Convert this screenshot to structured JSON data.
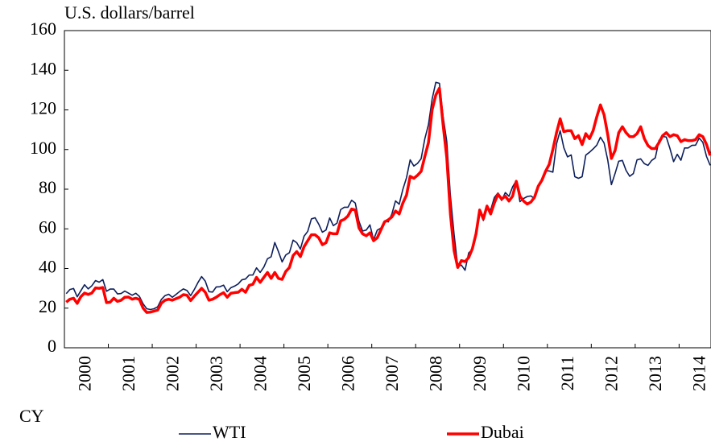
{
  "chart_data": {
    "type": "line",
    "y_axis_label": "U.S. dollars/barrel",
    "x_axis_label": "CY",
    "categories": [
      null,
      null,
      null,
      null,
      null,
      null,
      "2000",
      null,
      null,
      null,
      null,
      null,
      null,
      null,
      null,
      null,
      null,
      null,
      "2001",
      null,
      null,
      null,
      null,
      null,
      null,
      null,
      null,
      null,
      null,
      null,
      "2002",
      null,
      null,
      null,
      null,
      null,
      null,
      null,
      null,
      null,
      null,
      null,
      "2003",
      null,
      null,
      null,
      null,
      null,
      null,
      null,
      null,
      null,
      null,
      null,
      "2004",
      null,
      null,
      null,
      null,
      null,
      null,
      null,
      null,
      null,
      null,
      null,
      "2005",
      null,
      null,
      null,
      null,
      null,
      null,
      null,
      null,
      null,
      null,
      null,
      "2006",
      null,
      null,
      null,
      null,
      null,
      null,
      null,
      null,
      null,
      null,
      null,
      "2007",
      null,
      null,
      null,
      null,
      null,
      null,
      null,
      null,
      null,
      null,
      null,
      "2008",
      null,
      null,
      null,
      null,
      null,
      null,
      null,
      null,
      null,
      null,
      null,
      "2009",
      null,
      null,
      null,
      null,
      null,
      null,
      null,
      null,
      null,
      null,
      null,
      "2010",
      null,
      null,
      null,
      null,
      null,
      null,
      null,
      null,
      null,
      null,
      null,
      "2011",
      null,
      null,
      null,
      null,
      null,
      null,
      null,
      null,
      null,
      null,
      null,
      "2012",
      null,
      null,
      null,
      null,
      null,
      null,
      null,
      null,
      null,
      null,
      null,
      "2013",
      null,
      null,
      null,
      null,
      null,
      null,
      null,
      null,
      null,
      null,
      null,
      "2014",
      null,
      null
    ],
    "series": [
      {
        "name": "WTI",
        "color": "#0d1f5c",
        "values": [
          27.3,
          29.4,
          29.9,
          25.7,
          28.8,
          31.8,
          29.7,
          31.3,
          33.9,
          33.1,
          34.4,
          28.5,
          29.6,
          29.6,
          27.2,
          27.4,
          28.6,
          27.6,
          26.5,
          27.5,
          25.9,
          22.2,
          19.7,
          19.3,
          19.7,
          20.7,
          24.4,
          26.3,
          27.0,
          25.5,
          26.9,
          28.4,
          29.7,
          28.9,
          26.3,
          29.4,
          32.9,
          35.9,
          33.6,
          28.3,
          28.1,
          30.7,
          30.8,
          31.6,
          28.3,
          30.3,
          31.1,
          32.2,
          34.3,
          34.7,
          36.7,
          36.7,
          40.3,
          38.0,
          40.7,
          44.9,
          45.9,
          53.1,
          48.5,
          43.3,
          46.8,
          48.0,
          54.3,
          53.0,
          49.8,
          56.3,
          58.7,
          65.0,
          65.6,
          62.4,
          58.3,
          59.4,
          65.5,
          61.6,
          62.9,
          69.7,
          70.9,
          70.9,
          74.4,
          73.0,
          63.8,
          58.9,
          59.4,
          62.0,
          54.5,
          59.3,
          60.4,
          64.0,
          63.5,
          67.5,
          74.1,
          72.4,
          79.9,
          85.8,
          94.8,
          91.7,
          93.0,
          95.4,
          105.4,
          112.6,
          125.4,
          133.9,
          133.4,
          116.7,
          104.1,
          76.6,
          57.3,
          41.1,
          41.7,
          39.1,
          47.9,
          49.6,
          59.0,
          69.6,
          64.2,
          71.1,
          69.5,
          75.8,
          78.1,
          74.3,
          78.3,
          76.4,
          81.2,
          84.3,
          73.7,
          75.3,
          76.3,
          76.6,
          75.2,
          81.9,
          84.3,
          89.2,
          89.2,
          88.6,
          102.9,
          109.5,
          100.9,
          96.3,
          97.3,
          86.3,
          85.5,
          86.3,
          97.2,
          98.6,
          100.3,
          102.2,
          106.2,
          103.3,
          94.7,
          82.3,
          87.9,
          94.1,
          94.5,
          89.5,
          86.5,
          87.9,
          94.8,
          95.3,
          92.9,
          92.0,
          94.5,
          95.8,
          104.6,
          106.6,
          106.3,
          100.5,
          93.9,
          97.6,
          94.6,
          100.8,
          100.8,
          102.1,
          102.2,
          105.8,
          103.6,
          96.5,
          92.0
        ]
      },
      {
        "name": "Dubai",
        "color": "#ff0000",
        "values": [
          23.0,
          24.5,
          25.0,
          22.4,
          25.8,
          27.6,
          26.9,
          27.6,
          30.2,
          30.0,
          30.4,
          22.8,
          23.0,
          25.0,
          23.4,
          24.0,
          25.5,
          25.6,
          24.5,
          25.0,
          24.4,
          20.0,
          17.8,
          18.0,
          18.5,
          19.0,
          22.5,
          24.0,
          24.5,
          24.0,
          24.8,
          25.5,
          26.8,
          26.5,
          23.8,
          26.0,
          28.0,
          30.0,
          28.0,
          24.0,
          24.5,
          25.5,
          26.8,
          27.8,
          25.5,
          27.5,
          27.8,
          28.0,
          29.5,
          28.0,
          31.5,
          32.0,
          35.5,
          33.0,
          35.5,
          38.0,
          35.0,
          38.0,
          35.0,
          34.5,
          38.5,
          40.5,
          46.5,
          48.5,
          46.0,
          51.0,
          54.0,
          57.0,
          57.0,
          55.5,
          52.0,
          53.0,
          58.0,
          57.5,
          57.5,
          64.0,
          64.8,
          66.5,
          70.0,
          69.5,
          60.5,
          57.5,
          56.5,
          58.0,
          54.0,
          55.5,
          59.5,
          63.5,
          64.5,
          66.0,
          69.0,
          67.5,
          73.0,
          77.0,
          86.5,
          85.5,
          87.0,
          89.0,
          96.5,
          103.5,
          120.0,
          127.5,
          131.0,
          112.5,
          96.0,
          67.5,
          49.0,
          40.5,
          44.0,
          43.5,
          45.5,
          50.0,
          57.5,
          69.5,
          65.0,
          71.5,
          67.5,
          73.0,
          77.5,
          75.0,
          76.5,
          74.0,
          76.5,
          84.0,
          76.5,
          74.0,
          72.5,
          73.5,
          76.0,
          81.5,
          84.5,
          89.0,
          92.5,
          100.0,
          108.5,
          115.5,
          109.0,
          109.5,
          109.5,
          105.5,
          107.0,
          102.5,
          108.0,
          105.5,
          109.5,
          116.5,
          122.5,
          117.5,
          107.5,
          95.5,
          99.5,
          108.5,
          111.5,
          108.5,
          106.5,
          106.5,
          108.0,
          111.5,
          105.5,
          102.0,
          100.5,
          100.5,
          103.5,
          107.0,
          108.5,
          106.5,
          107.5,
          107.0,
          104.0,
          105.0,
          104.5,
          104.5,
          105.0,
          107.5,
          106.5,
          102.5,
          97.0
        ]
      }
    ],
    "ylim": [
      0,
      160
    ],
    "yticks": [
      0,
      20,
      40,
      60,
      80,
      100,
      120,
      140,
      160
    ],
    "legend": "bottom"
  }
}
